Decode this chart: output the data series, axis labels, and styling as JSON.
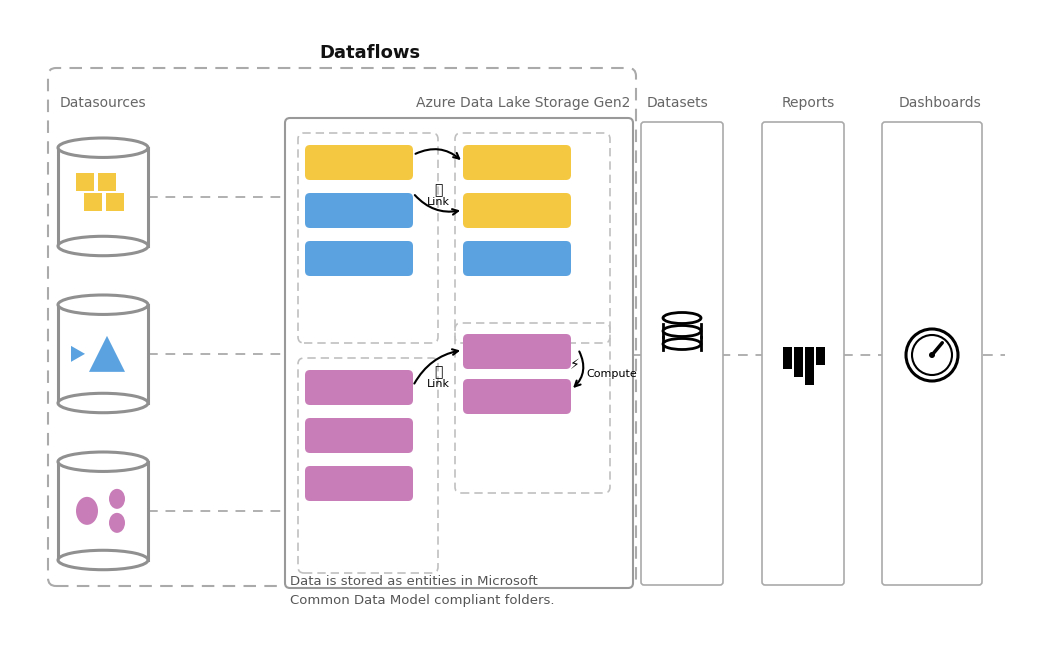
{
  "title": "Dataflows",
  "bg_color": "#ffffff",
  "label_datasources": "Datasources",
  "label_adls": "Azure Data Lake Storage Gen2",
  "label_datasets": "Datasets",
  "label_reports": "Reports",
  "label_dashboards": "Dashboards",
  "note": "Data is stored as entities in Microsoft\nCommon Data Model compliant folders.",
  "color_yellow": "#F5C842",
  "color_blue": "#5BA3E0",
  "color_pink": "#C87DB8",
  "color_cyl_edge": "#909090",
  "color_border": "#aaaaaa",
  "color_dashed": "#b0b0b0",
  "color_text_dark": "#444444",
  "color_text_label": "#666666"
}
